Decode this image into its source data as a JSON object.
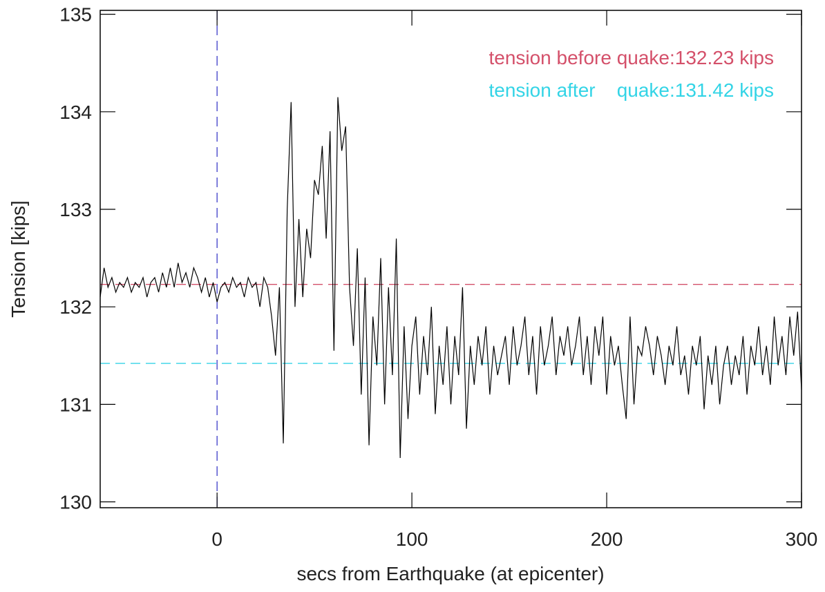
{
  "chart_data": {
    "type": "line",
    "x_label": "secs from Earthquake (at epicenter)",
    "y_label": "Tension [kips]",
    "xlim": [
      -60,
      300
    ],
    "ylim": [
      129.94,
      135.04
    ],
    "xticks": [
      0,
      100,
      200,
      300
    ],
    "yticks": [
      130,
      131,
      132,
      133,
      134,
      135
    ],
    "x": [
      -60,
      -58,
      -56,
      -54,
      -52,
      -50,
      -48,
      -46,
      -44,
      -42,
      -40,
      -38,
      -36,
      -34,
      -32,
      -30,
      -28,
      -26,
      -24,
      -22,
      -20,
      -18,
      -16,
      -14,
      -12,
      -10,
      -8,
      -6,
      -4,
      -2,
      0,
      2,
      4,
      6,
      8,
      10,
      12,
      14,
      16,
      18,
      20,
      22,
      24,
      26,
      28,
      30,
      32,
      34,
      36,
      38,
      40,
      42,
      44,
      46,
      48,
      50,
      52,
      54,
      56,
      58,
      60,
      62,
      64,
      66,
      68,
      70,
      72,
      74,
      76,
      78,
      80,
      82,
      84,
      86,
      88,
      90,
      92,
      94,
      96,
      98,
      100,
      102,
      104,
      106,
      108,
      110,
      112,
      114,
      116,
      118,
      120,
      122,
      124,
      126,
      128,
      130,
      132,
      134,
      136,
      138,
      140,
      142,
      144,
      146,
      148,
      150,
      152,
      154,
      156,
      158,
      160,
      162,
      164,
      166,
      168,
      170,
      172,
      174,
      176,
      178,
      180,
      182,
      184,
      186,
      188,
      190,
      192,
      194,
      196,
      198,
      200,
      202,
      204,
      206,
      208,
      210,
      212,
      214,
      216,
      218,
      220,
      222,
      224,
      226,
      228,
      230,
      232,
      234,
      236,
      238,
      240,
      242,
      244,
      246,
      248,
      250,
      252,
      254,
      256,
      258,
      260,
      262,
      264,
      266,
      268,
      270,
      272,
      274,
      276,
      278,
      280,
      282,
      284,
      286,
      288,
      290,
      292,
      294,
      296,
      298,
      300
    ],
    "series": [
      {
        "color": "#000000",
        "values": [
          132.1,
          132.4,
          132.2,
          132.3,
          132.15,
          132.25,
          132.2,
          132.3,
          132.15,
          132.25,
          132.2,
          132.3,
          132.1,
          132.25,
          132.3,
          132.15,
          132.35,
          132.2,
          132.4,
          132.2,
          132.45,
          132.25,
          132.35,
          132.2,
          132.4,
          132.3,
          132.15,
          132.3,
          132.1,
          132.25,
          132.05,
          132.2,
          132.25,
          132.15,
          132.3,
          132.2,
          132.25,
          132.1,
          132.3,
          132.2,
          132.25,
          132.0,
          132.3,
          132.2,
          131.9,
          131.5,
          132.2,
          130.6,
          133.0,
          134.1,
          132.0,
          132.9,
          132.1,
          132.8,
          132.5,
          133.3,
          133.15,
          133.65,
          132.7,
          133.8,
          131.55,
          134.15,
          133.6,
          133.85,
          132.2,
          131.6,
          132.6,
          131.1,
          132.3,
          130.58,
          131.9,
          131.4,
          132.5,
          131.0,
          132.2,
          131.3,
          132.7,
          130.45,
          131.8,
          130.85,
          131.6,
          131.9,
          131.1,
          131.7,
          131.3,
          132.0,
          130.9,
          131.6,
          131.2,
          131.8,
          131.0,
          131.7,
          131.3,
          132.2,
          130.75,
          131.6,
          131.2,
          131.7,
          131.4,
          131.8,
          131.1,
          131.6,
          131.3,
          131.5,
          131.7,
          131.2,
          131.8,
          131.4,
          131.6,
          131.9,
          131.3,
          131.7,
          131.1,
          131.8,
          131.4,
          131.6,
          131.9,
          131.3,
          131.7,
          131.5,
          131.8,
          131.4,
          131.6,
          131.9,
          131.3,
          131.7,
          131.2,
          131.8,
          131.5,
          131.9,
          131.1,
          131.7,
          131.4,
          131.6,
          131.2,
          130.85,
          131.9,
          131.0,
          131.6,
          131.5,
          131.8,
          131.6,
          131.3,
          131.7,
          131.5,
          131.2,
          131.6,
          131.4,
          131.8,
          131.3,
          131.5,
          131.1,
          131.6,
          131.4,
          131.7,
          130.95,
          131.5,
          131.2,
          131.6,
          131.0,
          131.4,
          131.6,
          131.2,
          131.5,
          131.3,
          131.7,
          131.1,
          131.6,
          131.4,
          131.8,
          131.3,
          131.6,
          131.2,
          131.9,
          131.4,
          131.7,
          131.3,
          131.9,
          131.5,
          131.95,
          131.15
        ]
      }
    ],
    "reference_lines": [
      {
        "axis": "y",
        "value": 132.23,
        "color": "#d4506a"
      },
      {
        "axis": "y",
        "value": 131.42,
        "color": "#33d4e6"
      },
      {
        "axis": "x",
        "value": 0,
        "color": "#3b3bc8"
      }
    ],
    "annotations": [
      {
        "text": "tension before quake:132.23 kips",
        "color": "#d4506a"
      },
      {
        "text": "tension after    quake:131.42 kips",
        "color": "#33d4e6"
      }
    ]
  }
}
